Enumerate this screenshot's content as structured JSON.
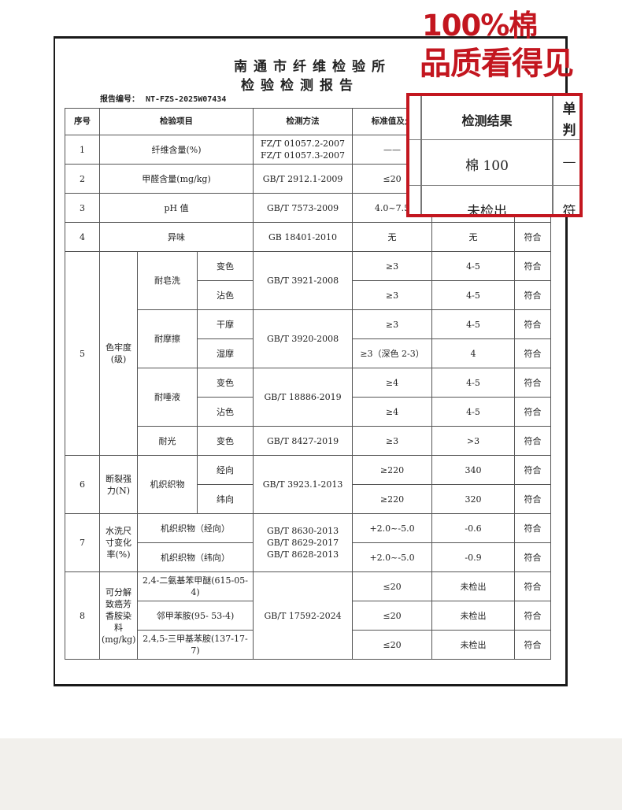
{
  "promo": {
    "line1": "100%棉",
    "line2": "品质看得见",
    "accent_color": "#c3161f"
  },
  "report": {
    "org": "南通市纤维检验所",
    "title": "检验检测报告",
    "report_no_label": "报告编号：",
    "report_no": "NT-FZS-2025W07434"
  },
  "headers": {
    "no": "序号",
    "item": "检验项目",
    "method": "检测方法",
    "standard": "标准值及允",
    "result": "检测结果",
    "judge_1": "单",
    "judge_2": "判"
  },
  "rows": {
    "r1": {
      "no": "1",
      "item": "纤维含量(%)",
      "method1": "FZ/T 01057.2-2007",
      "method2": "FZ/T 01057.3-2007",
      "standard": "——",
      "result": "棉 100",
      "judge": "—"
    },
    "r2": {
      "no": "2",
      "item": "甲醛含量(mg/kg)",
      "method": "GB/T 2912.1-2009",
      "standard": "≤20",
      "result": "未检出",
      "judge": "符"
    },
    "r3": {
      "no": "3",
      "item": "pH 值",
      "method": "GB/T 7573-2009",
      "standard": "4.0~7.5"
    },
    "r4": {
      "no": "4",
      "item": "异味",
      "method": "GB 18401-2010",
      "standard": "无",
      "result": "无",
      "judge": "符合"
    },
    "r5": {
      "no": "5",
      "category": "色牢度(级)",
      "soap": {
        "name": "耐皂洗",
        "method": "GB/T 3921-2008",
        "a": {
          "sub": "变色",
          "standard": "≥3",
          "result": "4-5",
          "judge": "符合"
        },
        "b": {
          "sub": "沾色",
          "standard": "≥3",
          "result": "4-5",
          "judge": "符合"
        }
      },
      "rub": {
        "name": "耐摩擦",
        "method": "GB/T 3920-2008",
        "a": {
          "sub": "干摩",
          "standard": "≥3",
          "result": "4-5",
          "judge": "符合"
        },
        "b": {
          "sub": "湿摩",
          "standard": "≥3（深色 2-3）",
          "result": "4",
          "judge": "符合"
        }
      },
      "saliva": {
        "name": "耐唾液",
        "method": "GB/T 18886-2019",
        "a": {
          "sub": "变色",
          "standard": "≥4",
          "result": "4-5",
          "judge": "符合"
        },
        "b": {
          "sub": "沾色",
          "standard": "≥4",
          "result": "4-5",
          "judge": "符合"
        }
      },
      "light": {
        "name": "耐光",
        "sub": "变色",
        "method": "GB/T 8427-2019",
        "standard": "≥3",
        "result": ">3",
        "judge": "符合"
      }
    },
    "r6": {
      "no": "6",
      "category": "断裂强力(N)",
      "item": "机织织物",
      "method": "GB/T 3923.1-2013",
      "a": {
        "sub": "经向",
        "standard": "≥220",
        "result": "340",
        "judge": "符合"
      },
      "b": {
        "sub": "纬向",
        "standard": "≥220",
        "result": "320",
        "judge": "符合"
      }
    },
    "r7": {
      "no": "7",
      "category": "水洗尺寸变化率(%)",
      "method1": "GB/T 8630-2013",
      "method2": "GB/T 8629-2017",
      "method3": "GB/T 8628-2013",
      "a": {
        "item": "机织织物（经向）",
        "standard": "+2.0~-5.0",
        "result": "-0.6",
        "judge": "符合"
      },
      "b": {
        "item": "机织织物（纬向）",
        "standard": "+2.0~-5.0",
        "result": "-0.9",
        "judge": "符合"
      }
    },
    "r8": {
      "no": "8",
      "category": "可分解致癌芳香胺染料(mg/kg)",
      "method": "GB/T 17592-2024",
      "a": {
        "item": "2,4-二氨基苯甲醚(615-05-4)",
        "standard": "≤20",
        "result": "未检出",
        "judge": "符合"
      },
      "b": {
        "item": "邻甲苯胺(95- 53-4)",
        "standard": "≤20",
        "result": "未检出",
        "judge": "符合"
      },
      "c": {
        "item": "2,4,5-三甲基苯胺(137-17-7)",
        "standard": "≤20",
        "result": "未检出",
        "judge": "符合"
      }
    }
  }
}
